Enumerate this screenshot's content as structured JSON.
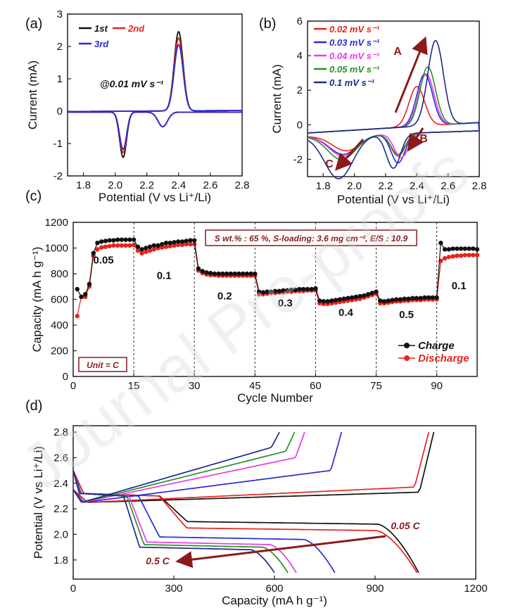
{
  "watermark": "Journal Pre-proofs",
  "colors": {
    "black": "#111111",
    "red": "#e8231d",
    "blue": "#2a2ad6",
    "magenta": "#e83ae8",
    "green": "#2a8f2a",
    "navy": "#1a2a8a",
    "dark_red": "#8b1a1a",
    "grey": "#888888"
  },
  "chart_data": [
    {
      "panel": "(a)",
      "type": "line",
      "xlabel": "Potential (V vs Li⁺/Li)",
      "ylabel": "Current (mA)",
      "xlim": [
        1.7,
        2.8
      ],
      "ylim": [
        -2,
        3
      ],
      "xticks": [
        "1.8",
        "2.0",
        "2.2",
        "2.4",
        "2.6",
        "2.8"
      ],
      "yticks": [
        "-2",
        "-1",
        "0",
        "1",
        "2",
        "3"
      ],
      "annotation": "@0.01 mV s⁻¹",
      "legend": [
        "1st",
        "2nd",
        "3rd"
      ],
      "series": [
        {
          "name": "1st",
          "color": "#111111",
          "peak_ox": [
            2.4,
            2.45
          ],
          "peak_red1": [
            2.05,
            -1.4
          ],
          "peak_red2": [
            2.3,
            -0.45
          ]
        },
        {
          "name": "2nd",
          "color": "#e8231d",
          "peak_ox": [
            2.4,
            2.25
          ],
          "peak_red1": [
            2.05,
            -1.25
          ],
          "peak_red2": [
            2.3,
            -0.45
          ]
        },
        {
          "name": "3rd",
          "color": "#2a2ad6",
          "peak_ox": [
            2.4,
            2.05
          ],
          "peak_red1": [
            2.05,
            -1.15
          ],
          "peak_red2": [
            2.3,
            -0.45
          ]
        }
      ]
    },
    {
      "panel": "(b)",
      "type": "line",
      "xlabel": "Potential (V vs Li⁺/Li)",
      "ylabel": "Current (mA)",
      "xlim": [
        1.7,
        2.8
      ],
      "ylim": [
        -3,
        6
      ],
      "xticks": [
        "1.8",
        "2.0",
        "2.2",
        "2.4",
        "2.6",
        "2.8"
      ],
      "yticks": [
        "-2",
        "0",
        "2",
        "4",
        "6"
      ],
      "labels": [
        "A",
        "B",
        "C"
      ],
      "legend": [
        "0.02 mV s⁻¹",
        "0.03 mV s⁻¹",
        "0.04 mV s⁻¹",
        "0.05 mV s⁻¹",
        "0.1 mV s⁻¹"
      ],
      "series": [
        {
          "name": "0.02 mV s⁻¹",
          "color": "#e8231d",
          "ox": [
            2.4,
            2.3
          ],
          "red1": [
            2.28,
            -1.2
          ],
          "red2": [
            1.95,
            -0.9
          ]
        },
        {
          "name": "0.03 mV s⁻¹",
          "color": "#2a2ad6",
          "ox": [
            2.45,
            3.0
          ],
          "red1": [
            2.28,
            -1.7
          ],
          "red2": [
            1.93,
            -1.1
          ]
        },
        {
          "name": "0.04 mV s⁻¹",
          "color": "#e83ae8",
          "ox": [
            2.46,
            3.0
          ],
          "red1": [
            2.3,
            -1.4
          ],
          "red2": [
            1.93,
            -1.2
          ]
        },
        {
          "name": "0.05 mV s⁻¹",
          "color": "#2a8f2a",
          "ox": [
            2.47,
            3.4
          ],
          "red1": [
            2.28,
            -1.3
          ],
          "red2": [
            1.92,
            -1.4
          ]
        },
        {
          "name": "0.1 mV s⁻¹",
          "color": "#1a2a8a",
          "ox": [
            2.52,
            4.9
          ],
          "red1": [
            2.25,
            -2.0
          ],
          "red2": [
            1.9,
            -2.5
          ]
        }
      ]
    },
    {
      "panel": "(c)",
      "type": "scatter",
      "xlabel": "Cycle Number",
      "ylabel": "Capacity (mA h g⁻¹)",
      "xlim": [
        0,
        100
      ],
      "ylim": [
        0,
        1200
      ],
      "xticks": [
        "0",
        "15",
        "30",
        "45",
        "60",
        "75",
        "90"
      ],
      "yticks": [
        "0",
        "200",
        "400",
        "600",
        "800",
        "1000",
        "1200"
      ],
      "info_box": "S wt.% : 65 %, S-loading: 3.6 mg cm⁻², E/S : 10.9",
      "unit_box": "Unit = C",
      "rate_labels": [
        "0.05",
        "0.1",
        "0.2",
        "0.3",
        "0.4",
        "0.5",
        "0.1"
      ],
      "legend": [
        "Charge",
        "Discharge"
      ],
      "segments": [
        {
          "rate": "0.05",
          "cycles": [
            1,
            15
          ],
          "charge": [
            680,
            620,
            640,
            720,
            960,
            1040,
            1050,
            1055,
            1060,
            1060,
            1065,
            1065,
            1065,
            1065,
            1065
          ],
          "discharge": [
            470,
            620,
            620,
            700,
            940,
            990,
            1005,
            1010,
            1015,
            1020,
            1020,
            1020,
            1020,
            1020,
            1025
          ]
        },
        {
          "rate": "0.1",
          "cycles": [
            16,
            30
          ],
          "charge": [
            1010,
            990,
            1000,
            1010,
            1020,
            1020,
            1030,
            1040,
            1040,
            1045,
            1050,
            1050,
            1055,
            1060,
            1060
          ],
          "discharge": [
            980,
            960,
            970,
            980,
            990,
            1000,
            1005,
            1010,
            1015,
            1020,
            1025,
            1025,
            1030,
            1030,
            1030
          ]
        },
        {
          "rate": "0.2",
          "cycles": [
            31,
            45
          ],
          "charge": [
            840,
            820,
            810,
            805,
            800,
            800,
            800,
            800,
            800,
            800,
            800,
            800,
            800,
            800,
            800
          ],
          "discharge": [
            825,
            805,
            795,
            790,
            790,
            785,
            785,
            785,
            785,
            785,
            785,
            785,
            785,
            785,
            785
          ]
        },
        {
          "rate": "0.3",
          "cycles": [
            46,
            60
          ],
          "charge": [
            660,
            655,
            660,
            660,
            665,
            665,
            670,
            670,
            675,
            675,
            680,
            680,
            680,
            680,
            685
          ],
          "discharge": [
            640,
            640,
            645,
            650,
            650,
            655,
            655,
            660,
            660,
            665,
            665,
            665,
            670,
            670,
            670
          ]
        },
        {
          "rate": "0.4",
          "cycles": [
            61,
            75
          ],
          "charge": [
            590,
            585,
            585,
            590,
            595,
            600,
            605,
            610,
            615,
            620,
            625,
            630,
            640,
            650,
            660
          ],
          "discharge": [
            570,
            565,
            565,
            570,
            575,
            580,
            585,
            590,
            595,
            600,
            605,
            615,
            625,
            635,
            645
          ]
        },
        {
          "rate": "0.5",
          "cycles": [
            76,
            90
          ],
          "charge": [
            590,
            585,
            590,
            595,
            600,
            600,
            605,
            605,
            610,
            610,
            610,
            615,
            615,
            615,
            615
          ],
          "discharge": [
            570,
            570,
            575,
            580,
            585,
            585,
            590,
            590,
            595,
            595,
            595,
            600,
            600,
            600,
            600
          ]
        },
        {
          "rate": "0.1",
          "cycles": [
            91,
            100
          ],
          "charge": [
            1040,
            990,
            990,
            995,
            995,
            995,
            995,
            995,
            995,
            990
          ],
          "discharge": [
            900,
            920,
            930,
            935,
            940,
            940,
            945,
            945,
            945,
            945
          ]
        }
      ]
    },
    {
      "panel": "(d)",
      "type": "line",
      "xlabel": "Capacity (mA h g⁻¹)",
      "ylabel": "Potential (V vs Li⁺/Li)",
      "xlim": [
        0,
        1200
      ],
      "ylim": [
        1.65,
        2.85
      ],
      "xticks": [
        "0",
        "300",
        "600",
        "900",
        "1200"
      ],
      "yticks": [
        "1.8",
        "2.0",
        "2.2",
        "2.4",
        "2.6",
        "2.8"
      ],
      "arrow_labels": [
        "0.05 C",
        "0.5 C"
      ],
      "series": [
        {
          "color": "#111111",
          "end_discharge": 1030,
          "end_charge": 1075,
          "lower_plateau": 2.1,
          "upper_plateau": 2.33
        },
        {
          "color": "#e8231d",
          "end_discharge": 1025,
          "end_charge": 1060,
          "lower_plateau": 2.05,
          "upper_plateau": 2.37
        },
        {
          "color": "#2a2ad6",
          "end_discharge": 780,
          "end_charge": 800,
          "lower_plateau": 1.98,
          "upper_plateau": 2.5
        },
        {
          "color": "#e83ae8",
          "end_discharge": 665,
          "end_charge": 690,
          "lower_plateau": 1.94,
          "upper_plateau": 2.6
        },
        {
          "color": "#2a8f2a",
          "end_discharge": 640,
          "end_charge": 660,
          "lower_plateau": 1.92,
          "upper_plateau": 2.65
        },
        {
          "color": "#1a2a8a",
          "end_discharge": 600,
          "end_charge": 615,
          "lower_plateau": 1.9,
          "upper_plateau": 2.68
        }
      ]
    }
  ]
}
